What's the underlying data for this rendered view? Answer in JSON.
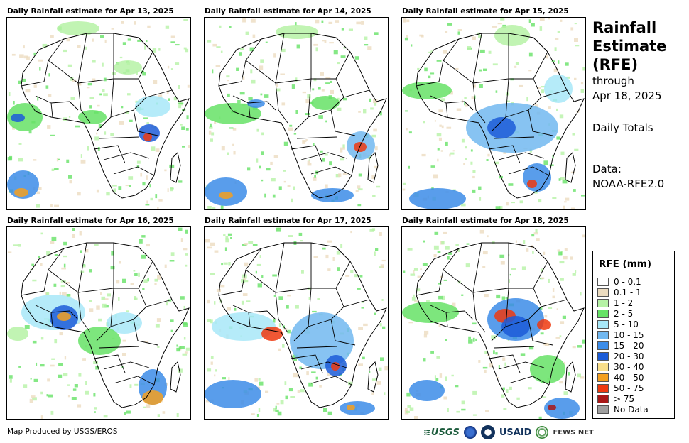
{
  "panels": [
    {
      "title": "Daily Rainfall estimate for Apr 13, 2025",
      "date": "Apr 13"
    },
    {
      "title": "Daily Rainfall estimate for Apr 14, 2025",
      "date": "Apr 14"
    },
    {
      "title": "Daily Rainfall estimate for Apr 15, 2025",
      "date": "Apr 15"
    },
    {
      "title": "Daily Rainfall estimate for Apr 16, 2025",
      "date": "Apr 16"
    },
    {
      "title": "Daily Rainfall estimate for Apr 17, 2025",
      "date": "Apr 17"
    },
    {
      "title": "Daily Rainfall estimate for Apr 18, 2025",
      "date": "Apr 18"
    }
  ],
  "side": {
    "title_line1": "Rainfall",
    "title_line2": "Estimate",
    "title_line3": "(RFE)",
    "through": "through",
    "end_date": "Apr 18, 2025",
    "totals": "Daily Totals",
    "data_label": "Data:",
    "data_source": "NOAA-RFE2.0"
  },
  "legend": {
    "title": "RFE (mm)",
    "items": [
      {
        "label": "0 - 0.1",
        "color": "#ffffff"
      },
      {
        "label": "0.1 - 1",
        "color": "#ecdcc0"
      },
      {
        "label": "1 - 2",
        "color": "#b6f2a6"
      },
      {
        "label": "2 - 5",
        "color": "#66e266"
      },
      {
        "label": "5 - 10",
        "color": "#a8e8f8"
      },
      {
        "label": "10 - 15",
        "color": "#72b8f0"
      },
      {
        "label": "15 - 20",
        "color": "#3c8ce8"
      },
      {
        "label": "20 - 30",
        "color": "#1c5cd8"
      },
      {
        "label": "30 - 40",
        "color": "#fadf8a"
      },
      {
        "label": "40 - 50",
        "color": "#f4a020"
      },
      {
        "label": "50 - 75",
        "color": "#ee3a10"
      },
      {
        "label": "> 75",
        "color": "#a81818"
      },
      {
        "label": "No Data",
        "color": "#a0a0a0"
      }
    ]
  },
  "credit": "Map Produced by USGS/EROS",
  "logos": {
    "usgs": "USGS",
    "usaid": "USAID",
    "fews": "FEWS NET"
  }
}
